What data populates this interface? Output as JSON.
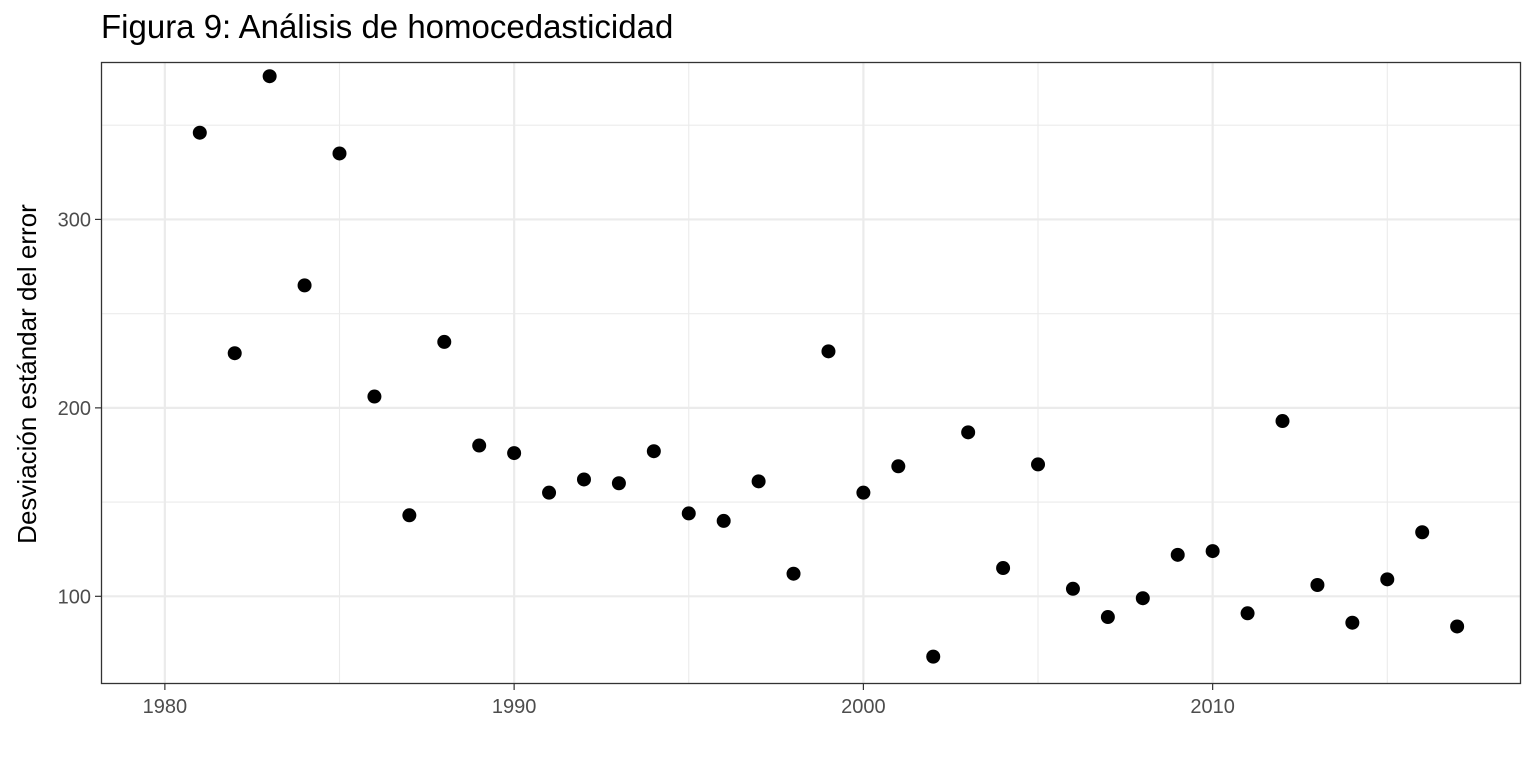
{
  "chart_data": {
    "type": "scatter",
    "title": "Figura 9: Análisis de homocedasticidad",
    "xlabel": "",
    "ylabel": "Desviación estándar del error",
    "xlim": [
      1978.2,
      2018.8
    ],
    "ylim": [
      54,
      383
    ],
    "x_ticks": [
      1980,
      1990,
      2000,
      2010
    ],
    "x_tick_labels": [
      "1980",
      "1990",
      "2000",
      "2010"
    ],
    "y_ticks": [
      100,
      200,
      300
    ],
    "y_tick_labels": [
      "100",
      "200",
      "300"
    ],
    "grid": true,
    "point_color": "#000000",
    "x": [
      1981,
      1982,
      1983,
      1984,
      1985,
      1986,
      1987,
      1988,
      1989,
      1990,
      1991,
      1992,
      1993,
      1994,
      1995,
      1996,
      1997,
      1998,
      1999,
      2000,
      2001,
      2002,
      2003,
      2004,
      2005,
      2006,
      2007,
      2008,
      2009,
      2010,
      2011,
      2012,
      2013,
      2014,
      2015,
      2016,
      2017
    ],
    "y": [
      346,
      229,
      376,
      265,
      335,
      206,
      143,
      235,
      180,
      176,
      155,
      162,
      160,
      177,
      144,
      140,
      161,
      112,
      230,
      155,
      169,
      68,
      187,
      115,
      170,
      104,
      89,
      99,
      122,
      124,
      91,
      193,
      106,
      86,
      109,
      134,
      84
    ]
  }
}
